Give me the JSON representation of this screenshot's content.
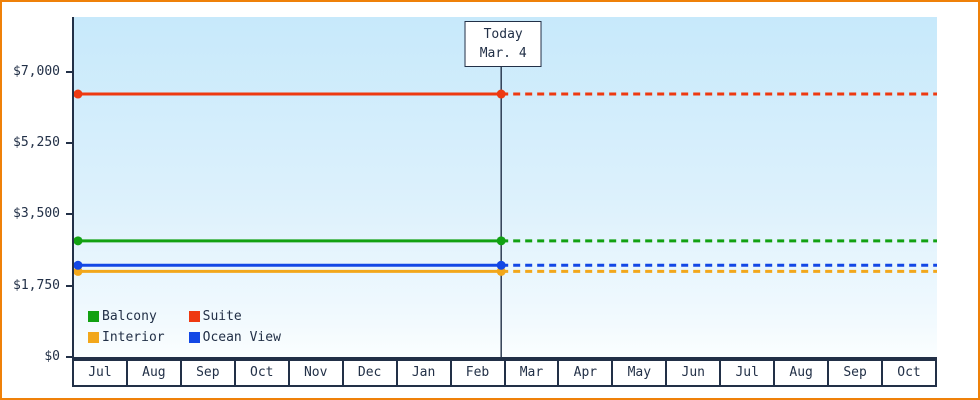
{
  "window": {
    "frame_border_color": "#ef8109",
    "axis_color": "#223047"
  },
  "chart_data": {
    "type": "line",
    "x_categories": [
      "Jul",
      "Aug",
      "Sep",
      "Oct",
      "Nov",
      "Dec",
      "Jan",
      "Feb",
      "Mar",
      "Apr",
      "May",
      "Jun",
      "Jul",
      "Aug",
      "Sep",
      "Oct"
    ],
    "y_ticks": [
      {
        "label": "$0",
        "value": 0
      },
      {
        "label": "$1,750",
        "value": 1750
      },
      {
        "label": "$3,500",
        "value": 3500
      },
      {
        "label": "$5,250",
        "value": 5250
      },
      {
        "label": "$7,000",
        "value": 7000
      }
    ],
    "ylim": [
      0,
      8340
    ],
    "grid": "off",
    "today_marker": {
      "line1": "Today",
      "line2": "Mar. 4",
      "x_fraction": 0.495
    },
    "dashed_after_today": true,
    "series": [
      {
        "name": "Balcony",
        "color": "#12a112",
        "value": 2850
      },
      {
        "name": "Suite",
        "color": "#ee3911",
        "value": 6450
      },
      {
        "name": "Interior",
        "color": "#f2a71b",
        "value": 2100
      },
      {
        "name": "Ocean View",
        "color": "#1247e5",
        "value": 2250
      }
    ],
    "legend": {
      "position": "bottom-left",
      "entries": [
        "Balcony",
        "Suite",
        "Interior",
        "Ocean View"
      ]
    }
  }
}
